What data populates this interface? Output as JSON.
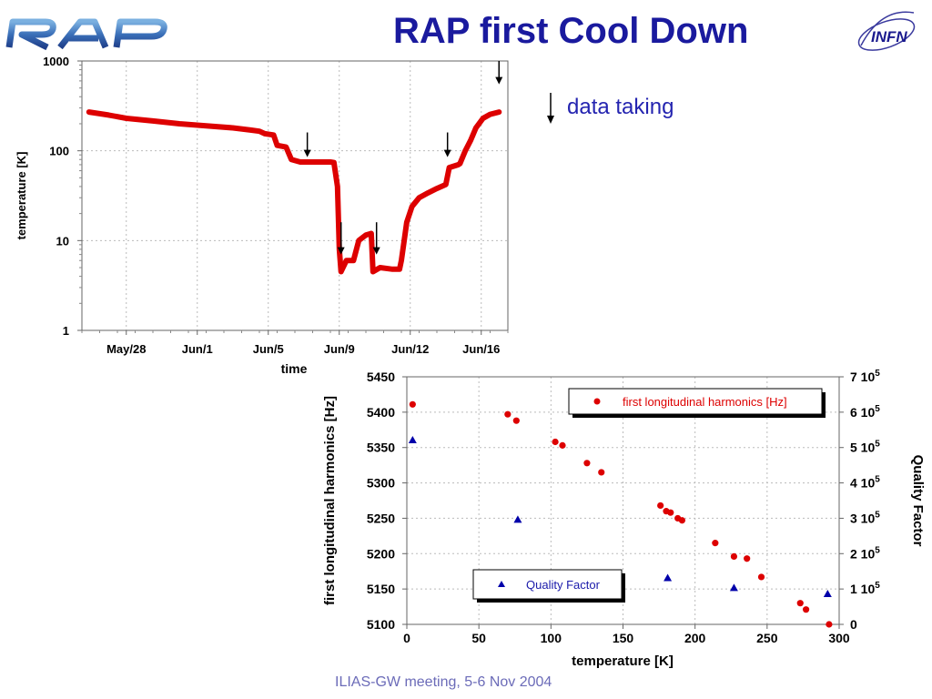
{
  "header": {
    "title": "RAP first Cool Down",
    "left_logo": "RAP",
    "right_logo": "INFN"
  },
  "footer": {
    "text": "ILIAS-GW meeting, 5-6 Nov 2004"
  },
  "colors": {
    "title": "#1a1a9e",
    "red": "#dd0000",
    "blue": "#0000aa"
  },
  "legend_top": {
    "label": "data taking",
    "icon": "down-arrow-icon"
  },
  "chart_data": [
    {
      "type": "line",
      "xlabel": "time",
      "ylabel": "temperature [K]",
      "yscale": "log",
      "ylim": [
        1,
        1000
      ],
      "yticks": [
        "1",
        "10",
        "100",
        "1000"
      ],
      "xlim": [
        0,
        24
      ],
      "xticks": [
        {
          "x": 2.5,
          "label": "May/28"
        },
        {
          "x": 6.5,
          "label": "Jun/1"
        },
        {
          "x": 10.5,
          "label": "Jun/5"
        },
        {
          "x": 14.5,
          "label": "Jun/9"
        },
        {
          "x": 18.5,
          "label": "Jun/12"
        },
        {
          "x": 22.5,
          "label": "Jun/16"
        }
      ],
      "grid": true,
      "series": [
        {
          "color": "#dd0000",
          "points": [
            [
              0.4,
              270
            ],
            [
              1.5,
              250
            ],
            [
              2.5,
              230
            ],
            [
              4.0,
              215
            ],
            [
              5.5,
              200
            ],
            [
              7.0,
              190
            ],
            [
              8.5,
              180
            ],
            [
              9.5,
              170
            ],
            [
              10.0,
              165
            ],
            [
              10.3,
              155
            ],
            [
              10.8,
              150
            ],
            [
              11.0,
              115
            ],
            [
              11.5,
              110
            ],
            [
              11.8,
              80
            ],
            [
              12.3,
              75
            ],
            [
              13.0,
              75
            ],
            [
              14.0,
              75
            ],
            [
              14.2,
              74
            ],
            [
              14.4,
              40
            ],
            [
              14.5,
              8
            ],
            [
              14.6,
              4.5
            ],
            [
              14.9,
              6
            ],
            [
              15.3,
              6
            ],
            [
              15.6,
              10
            ],
            [
              16.0,
              11.5
            ],
            [
              16.3,
              12
            ],
            [
              16.4,
              4.5
            ],
            [
              16.8,
              5
            ],
            [
              17.5,
              4.8
            ],
            [
              17.9,
              4.8
            ],
            [
              18.0,
              6
            ],
            [
              18.3,
              16
            ],
            [
              18.6,
              24
            ],
            [
              19.0,
              30
            ],
            [
              19.5,
              34
            ],
            [
              20.0,
              38
            ],
            [
              20.5,
              42
            ],
            [
              20.7,
              65
            ],
            [
              21.2,
              70
            ],
            [
              21.3,
              72
            ],
            [
              21.6,
              100
            ],
            [
              21.9,
              130
            ],
            [
              22.2,
              180
            ],
            [
              22.6,
              230
            ],
            [
              23.0,
              255
            ],
            [
              23.5,
              270
            ]
          ]
        }
      ],
      "annotations": [
        {
          "type": "down-arrow",
          "x": 12.7,
          "y_top": 160,
          "y_bottom": 85
        },
        {
          "type": "down-arrow",
          "x": 14.6,
          "y_top": 16,
          "y_bottom": 7
        },
        {
          "type": "down-arrow",
          "x": 16.6,
          "y_top": 16,
          "y_bottom": 7
        },
        {
          "type": "down-arrow",
          "x": 20.6,
          "y_top": 160,
          "y_bottom": 85
        },
        {
          "type": "down-arrow",
          "x": 23.5,
          "y_top": 1000,
          "y_bottom": 550
        }
      ]
    },
    {
      "type": "scatter",
      "xlabel": "temperature [K]",
      "ylabel": "first longitudinal harmonics [Hz]",
      "y2label": "Quality Factor",
      "xlim": [
        0,
        300
      ],
      "ylim": [
        5100,
        5450
      ],
      "y2lim": [
        0,
        7
      ],
      "xticks": [
        "0",
        "50",
        "100",
        "150",
        "200",
        "250",
        "300"
      ],
      "yticks": [
        "5100",
        "5150",
        "5200",
        "5250",
        "5300",
        "5350",
        "5400",
        "5450"
      ],
      "y2ticks": [
        {
          "base": "0",
          "exp": ""
        },
        {
          "base": "1 10",
          "exp": "5"
        },
        {
          "base": "2 10",
          "exp": "5"
        },
        {
          "base": "3 10",
          "exp": "5"
        },
        {
          "base": "4 10",
          "exp": "5"
        },
        {
          "base": "5 10",
          "exp": "5"
        },
        {
          "base": "6 10",
          "exp": "5"
        },
        {
          "base": "7 10",
          "exp": "5"
        }
      ],
      "grid": true,
      "legend": [
        {
          "label": "first longitudinal harmonics [Hz]",
          "placement": "top-right",
          "marker": "circle",
          "color": "#dd0000"
        },
        {
          "label": "Quality Factor",
          "placement": "bottom-center",
          "marker": "triangle",
          "color": "#0000aa"
        }
      ],
      "series": [
        {
          "name": "first longitudinal harmonics [Hz]",
          "marker": "circle",
          "color": "#dd0000",
          "axis": "left",
          "points": [
            [
              4,
              5411
            ],
            [
              70,
              5397
            ],
            [
              76,
              5388
            ],
            [
              103,
              5358
            ],
            [
              108,
              5353
            ],
            [
              125,
              5328
            ],
            [
              135,
              5315
            ],
            [
              176,
              5268
            ],
            [
              180,
              5260
            ],
            [
              183,
              5258
            ],
            [
              188,
              5250
            ],
            [
              191,
              5247
            ],
            [
              214,
              5215
            ],
            [
              227,
              5196
            ],
            [
              236,
              5193
            ],
            [
              246,
              5167
            ],
            [
              273,
              5130
            ],
            [
              277,
              5121
            ],
            [
              293,
              5100
            ]
          ]
        },
        {
          "name": "Quality Factor",
          "marker": "triangle",
          "color": "#0000aa",
          "axis": "right",
          "points": [
            [
              4,
              5.2
            ],
            [
              77,
              2.95
            ],
            [
              181,
              1.3
            ],
            [
              227,
              1.02
            ],
            [
              292,
              0.85
            ]
          ]
        }
      ]
    }
  ]
}
